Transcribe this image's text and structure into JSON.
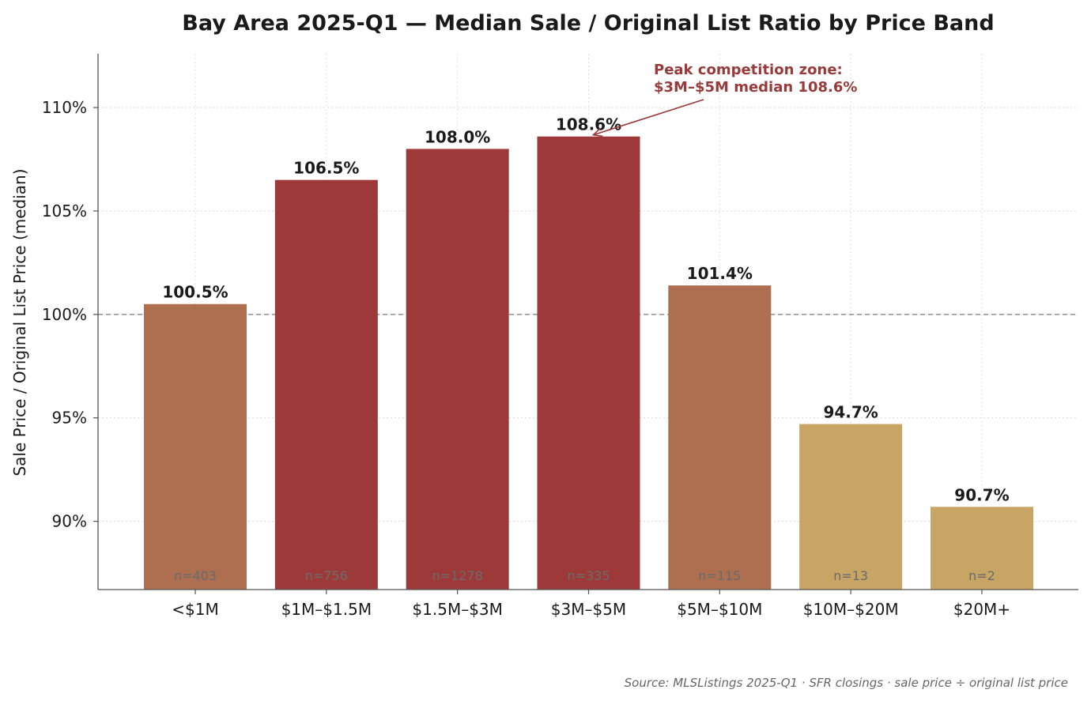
{
  "chart_data": {
    "type": "bar",
    "title": "Bay Area 2025-Q1 — Median Sale / Original List Ratio by Price Band",
    "ylabel": "Sale Price / Original List Price (median)",
    "xlabel": "",
    "categories": [
      "<$1M",
      "$1M–$1.5M",
      "$1.5M–$3M",
      "$3M–$5M",
      "$5M–$10M",
      "$10M–$20M",
      "$20M+"
    ],
    "values": [
      100.5,
      106.5,
      108.0,
      108.6,
      101.4,
      94.7,
      90.7
    ],
    "value_labels": [
      "100.5%",
      "106.5%",
      "108.0%",
      "108.6%",
      "101.4%",
      "94.7%",
      "90.7%"
    ],
    "counts": [
      "n=403",
      "n=756",
      "n=1278",
      "n=335",
      "n=115",
      "n=13",
      "n=2"
    ],
    "bar_colors": [
      "#ad6f4f",
      "#9e393a",
      "#9e393a",
      "#9e393a",
      "#ad6f4f",
      "#c8a564",
      "#c8a564"
    ],
    "ylim": [
      86.7,
      112.6
    ],
    "yticks": [
      90,
      95,
      100,
      105,
      110
    ],
    "ytick_labels": [
      "90%",
      "95%",
      "100%",
      "105%",
      "110%"
    ],
    "reference_line": 100,
    "grid": true,
    "annotation": {
      "lines": [
        "Peak competition zone:",
        "$3M–$5M median 108.6%"
      ],
      "target_index": 3,
      "color": "#993a3a"
    },
    "source": "Source: MLSListings 2025-Q1 · SFR closings · sale price ÷ original list price"
  }
}
